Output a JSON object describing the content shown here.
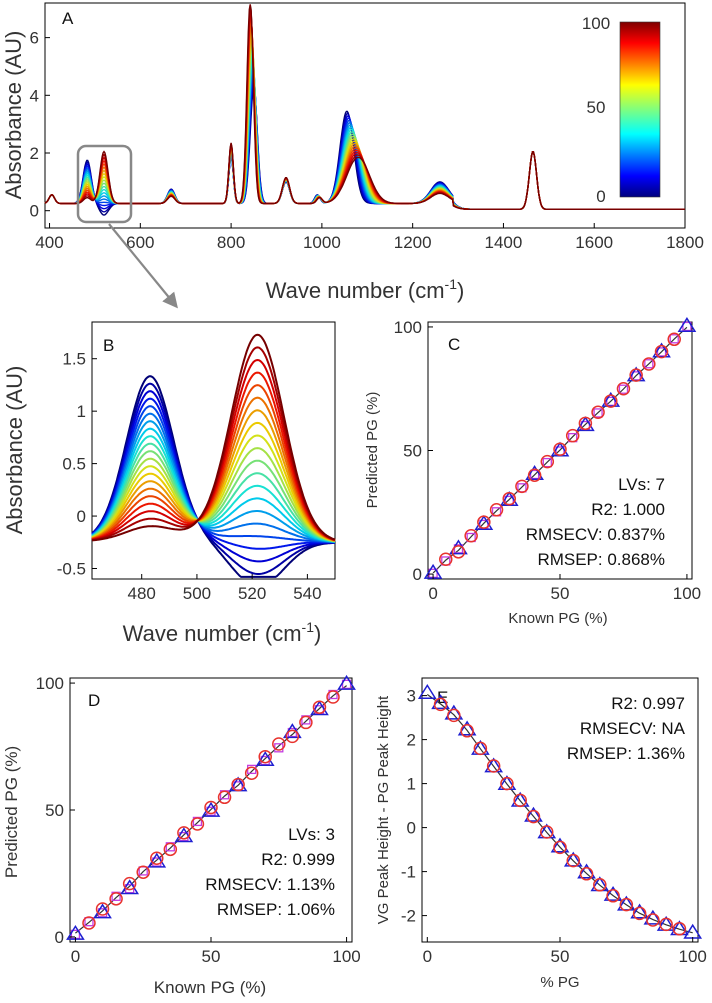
{
  "chart_data": [
    {
      "id": "A",
      "type": "line",
      "panel_label": "A",
      "title": "",
      "xlabel": "Wave number (cm",
      "xlabel_sup": "-1",
      "xlabel_close": ")",
      "ylabel": "Absorbance (AU)",
      "xlim": [
        390,
        1800
      ],
      "ylim": [
        -0.6,
        7.2
      ],
      "xticks": [
        400,
        600,
        800,
        1000,
        1200,
        1400,
        1600,
        1800
      ],
      "yticks": [
        0,
        2,
        4,
        6
      ],
      "series_count": 21,
      "colorbar": {
        "label_min": "0",
        "label_mid": "50",
        "label_max": "100",
        "range": [
          0,
          100
        ]
      },
      "peaks_end_state": [
        {
          "center": 405,
          "height": 0.3,
          "width": 6
        },
        {
          "center": 483,
          "height": 0.2,
          "width": 8
        },
        {
          "center": 520,
          "height": 1.8,
          "width": 9
        },
        {
          "center": 668,
          "height": 0.25,
          "width": 8
        },
        {
          "center": 800,
          "height": 2.1,
          "width": 5
        },
        {
          "center": 842,
          "height": 7.0,
          "width": 7
        },
        {
          "center": 921,
          "height": 0.9,
          "width": 8
        },
        {
          "center": 995,
          "height": 0.2,
          "width": 6
        },
        {
          "center": 1080,
          "height": 1.6,
          "width": 25
        },
        {
          "center": 1260,
          "height": 0.35,
          "width": 20
        },
        {
          "center": 1465,
          "height": 2.0,
          "width": 8
        }
      ],
      "peaks_start_state": [
        {
          "center": 405,
          "height": 0.3,
          "width": 6
        },
        {
          "center": 483,
          "height": 1.5,
          "width": 9
        },
        {
          "center": 520,
          "height": -0.4,
          "width": 10
        },
        {
          "center": 668,
          "height": 0.5,
          "width": 8
        },
        {
          "center": 800,
          "height": 1.6,
          "width": 5
        },
        {
          "center": 850,
          "height": 4.0,
          "width": 8
        },
        {
          "center": 921,
          "height": 0.75,
          "width": 8
        },
        {
          "center": 990,
          "height": 0.3,
          "width": 6
        },
        {
          "center": 1055,
          "height": 3.2,
          "width": 15
        },
        {
          "center": 1260,
          "height": 0.75,
          "width": 20
        },
        {
          "center": 1465,
          "height": 2.0,
          "width": 8
        }
      ]
    },
    {
      "id": "B",
      "type": "line",
      "panel_label": "B",
      "xlabel": "Wave number (cm",
      "xlabel_sup": "-1",
      "xlabel_close": ")",
      "ylabel": "Absorbance (AU)",
      "xlim": [
        462,
        550
      ],
      "ylim": [
        -0.6,
        1.85
      ],
      "xticks": [
        480,
        500,
        520,
        540
      ],
      "yticks": [
        -0.5,
        0,
        0.5,
        1,
        1.5
      ],
      "ytick_labels": [
        "-0.5",
        "0",
        "0.5",
        "1",
        "1.5"
      ],
      "series_count": 21,
      "isosbestic_point": {
        "x": 500,
        "y": 0.05
      }
    },
    {
      "id": "C",
      "type": "scatter",
      "panel_label": "C",
      "xlabel": "Known PG (%)",
      "ylabel": "Predicted PG (%)",
      "xlim": [
        -2,
        102
      ],
      "ylim": [
        -2,
        102
      ],
      "xticks": [
        0,
        50,
        100
      ],
      "yticks": [
        0,
        50,
        100
      ],
      "x": [
        0,
        5,
        10,
        15,
        20,
        25,
        30,
        35,
        40,
        45,
        50,
        55,
        60,
        65,
        70,
        75,
        80,
        85,
        90,
        95,
        100
      ],
      "calibration": [
        0.5,
        6,
        9,
        15.5,
        21,
        26,
        30.5,
        35.5,
        40,
        45.5,
        50.5,
        56,
        61,
        65.5,
        70,
        75,
        80.5,
        85,
        90,
        95,
        99.5
      ],
      "prediction": [
        0.3,
        5.3,
        10.2,
        14.8,
        20.1,
        25.2,
        29.8,
        34.9,
        40.3,
        45.1,
        49.8,
        55.2,
        60.1,
        65.2,
        69.9,
        74.8,
        80.2,
        85.1,
        89.9,
        95.2,
        100.2
      ],
      "stats": [
        "LVs: 7",
        "R2: 1.000",
        "RMSECV: 0.837%",
        "RMSEP: 0.868%"
      ]
    },
    {
      "id": "D",
      "type": "scatter",
      "panel_label": "D",
      "xlabel": "Known PG (%)",
      "ylabel": "Predicted PG (%)",
      "xlim": [
        -2,
        102
      ],
      "ylim": [
        -2,
        102
      ],
      "xticks": [
        0,
        50,
        100
      ],
      "yticks": [
        0,
        50,
        100
      ],
      "x": [
        0,
        5,
        10,
        15,
        20,
        25,
        30,
        35,
        40,
        45,
        50,
        55,
        60,
        65,
        70,
        75,
        80,
        85,
        90,
        95,
        100
      ],
      "calibration": [
        2,
        5.5,
        11,
        15,
        21,
        25.5,
        31,
        34.5,
        41,
        44.5,
        51,
        55,
        60,
        64.5,
        71,
        76,
        79,
        84.5,
        90.5,
        94.5,
        98.5
      ],
      "prediction": [
        1,
        6,
        9.5,
        16,
        19,
        26,
        29.5,
        35.5,
        39.5,
        45.5,
        49.5,
        56,
        59.5,
        66,
        69.5,
        74.5,
        80.5,
        85.5,
        89.5,
        95.5,
        99.5
      ],
      "stats": [
        "LVs: 3",
        "R2: 0.999",
        "RMSECV: 1.13%",
        "RMSEP: 1.06%"
      ]
    },
    {
      "id": "E",
      "type": "scatter",
      "panel_label": "E",
      "xlabel": "% PG",
      "ylabel": "VG Peak Height - PG Peak Height",
      "xlim": [
        -2,
        102
      ],
      "ylim": [
        -2.6,
        3.4
      ],
      "xticks": [
        0,
        50,
        100
      ],
      "yticks": [
        -2,
        -1,
        0,
        1,
        2,
        3
      ],
      "x": [
        0,
        5,
        10,
        15,
        20,
        25,
        30,
        35,
        40,
        45,
        50,
        55,
        60,
        65,
        70,
        75,
        80,
        85,
        90,
        95,
        100
      ],
      "calibration": [
        3.0,
        2.8,
        2.55,
        2.2,
        1.8,
        1.4,
        1.0,
        0.62,
        0.25,
        -0.1,
        -0.45,
        -0.75,
        -1.05,
        -1.3,
        -1.55,
        -1.75,
        -1.95,
        -2.1,
        -2.2,
        -2.3,
        -2.38
      ],
      "prediction": [
        3.05,
        2.82,
        2.58,
        2.22,
        1.78,
        1.38,
        0.98,
        0.6,
        0.26,
        -0.12,
        -0.44,
        -0.76,
        -1.03,
        -1.32,
        -1.54,
        -1.76,
        -1.94,
        -2.08,
        -2.22,
        -2.32,
        -2.4
      ],
      "stats": [
        "R2: 0.997",
        "RMSECV: NA",
        "RMSEP: 1.36%"
      ]
    }
  ],
  "colors": {
    "calibration_marker": "#e8332e",
    "prediction_marker": "#1f1fd1",
    "prediction_marker_alt": "#c43be0",
    "fit_line": "#333333",
    "inset_box": "#888888"
  }
}
